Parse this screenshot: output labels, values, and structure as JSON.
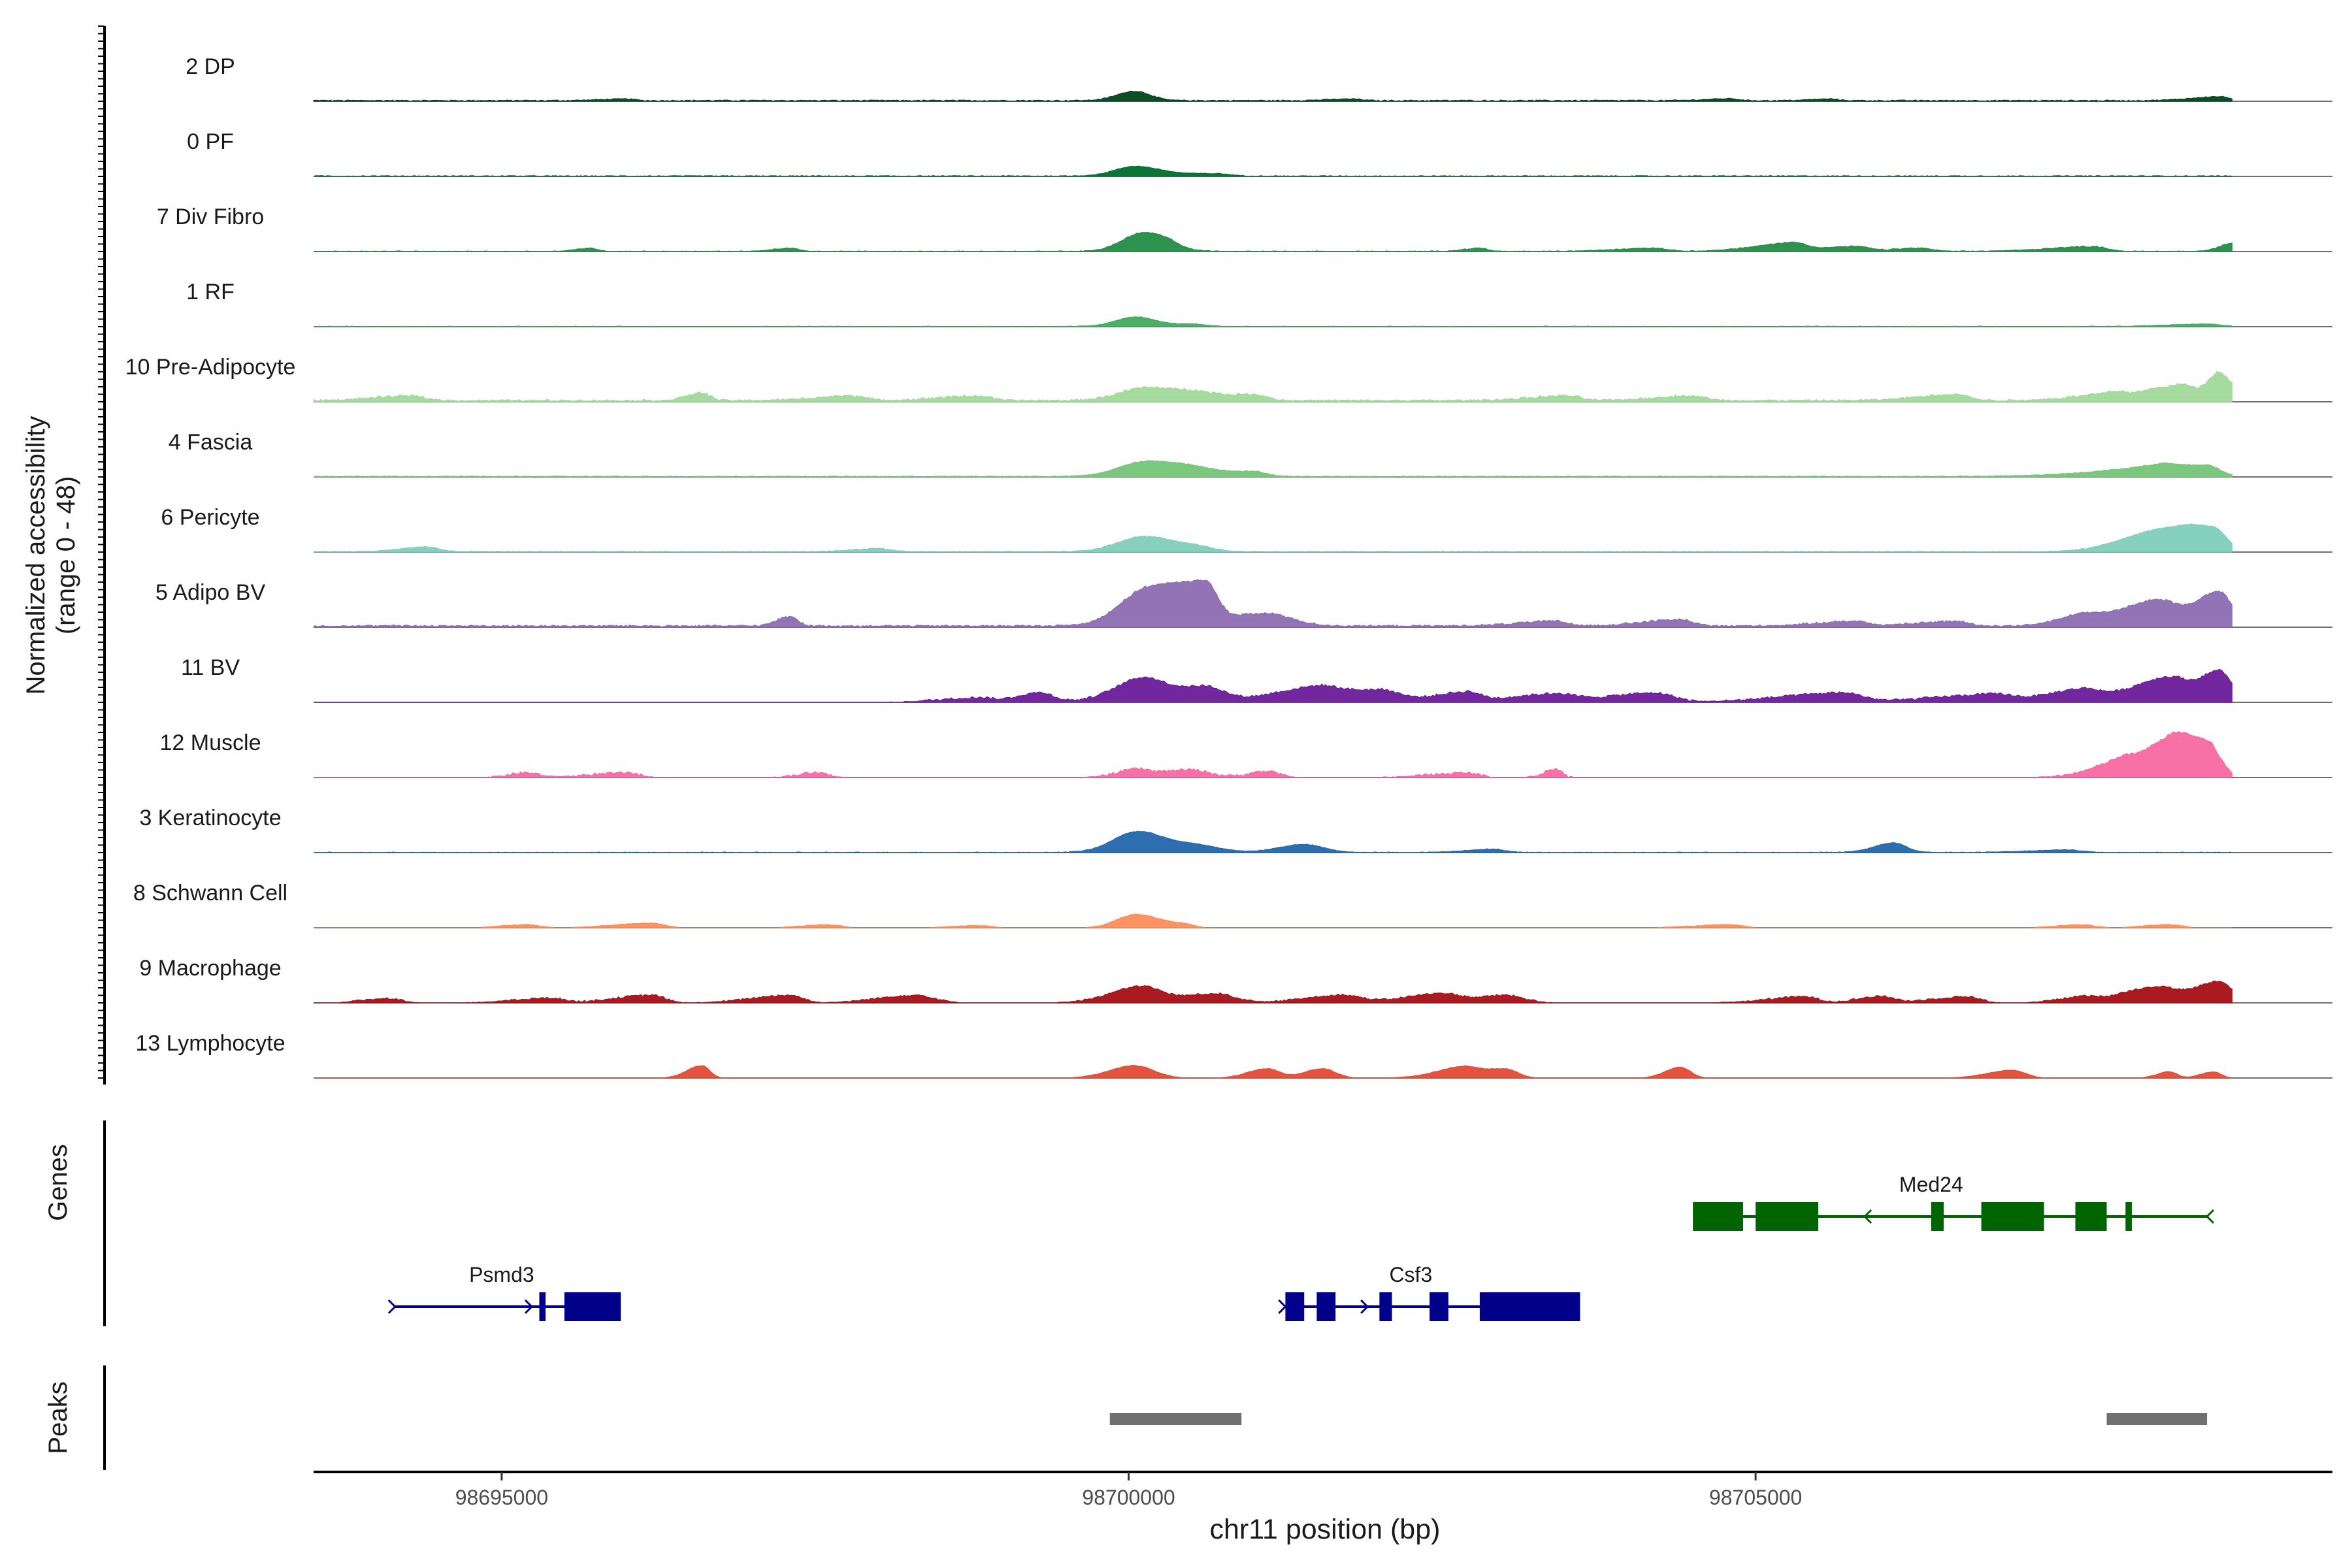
{
  "chart_data": {
    "type": "area",
    "title": "",
    "xlabel": "chr11 position (bp)",
    "xlim": [
      98693500,
      98709600
    ],
    "x_ticks": [
      98695000,
      98700000,
      98705000
    ],
    "x_tick_labels": [
      "98695000",
      "98700000",
      "98705000"
    ],
    "y_axis_label": "Normalized accessibility\n(range 0 - 48)",
    "ylim": [
      0,
      48
    ],
    "data_extent": [
      98693500,
      98708800
    ],
    "grid": false,
    "coverage_tracks": [
      {
        "name": "2 DP",
        "color": "#00441b",
        "peaks": [
          [
            98700050,
            6,
            140,
            120
          ],
          [
            98708700,
            2.5,
            220,
            80
          ],
          [
            98704800,
            1.2,
            180,
            60
          ],
          [
            98705600,
            1,
            150,
            60
          ],
          [
            98696000,
            1,
            200,
            60
          ],
          [
            98701800,
            1,
            200,
            60
          ]
        ],
        "base": 0.6,
        "noise": 0.25
      },
      {
        "name": "0 PF",
        "color": "#006d2c",
        "peaks": [
          [
            98700050,
            6,
            160,
            200
          ],
          [
            98700700,
            1.5,
            300,
            100
          ]
        ],
        "base": 0.4,
        "noise": 0.2
      },
      {
        "name": "7 Div Fibro",
        "color": "#238b45",
        "peaks": [
          [
            98700100,
            10,
            160,
            200
          ],
          [
            98700300,
            3,
            200,
            80
          ],
          [
            98705300,
            5,
            300,
            100
          ],
          [
            98705800,
            3,
            300,
            100
          ],
          [
            98707700,
            3,
            350,
            100
          ],
          [
            98708800,
            5,
            100,
            60
          ],
          [
            98695700,
            2,
            100,
            60
          ],
          [
            98697300,
            2,
            120,
            60
          ],
          [
            98702800,
            2,
            120,
            60
          ],
          [
            98704200,
            2,
            300,
            100
          ],
          [
            98706300,
            2,
            200,
            100
          ]
        ],
        "base": 0.3,
        "noise": 0.6
      },
      {
        "name": "1 RF",
        "color": "#41ab5d",
        "peaks": [
          [
            98700050,
            6,
            150,
            150
          ],
          [
            98700500,
            1.5,
            200,
            100
          ],
          [
            98708600,
            1.5,
            300,
            100
          ]
        ],
        "base": 0.3,
        "noise": 0.2
      },
      {
        "name": "10 Pre-Adipocyte",
        "color": "#a1d99b",
        "peaks": [
          [
            98700100,
            6,
            200,
            200
          ],
          [
            98700500,
            5,
            300,
            150
          ],
          [
            98701000,
            4,
            300,
            100
          ],
          [
            98696600,
            5,
            120,
            60
          ],
          [
            98707850,
            4,
            300,
            100
          ],
          [
            98708400,
            10,
            300,
            100
          ],
          [
            98708700,
            18,
            100,
            100
          ],
          [
            98694300,
            3,
            300,
            100
          ],
          [
            98697800,
            3,
            300,
            100
          ],
          [
            98698800,
            3,
            300,
            100
          ],
          [
            98703500,
            3,
            300,
            100
          ],
          [
            98704500,
            3,
            300,
            100
          ],
          [
            98706600,
            4,
            300,
            100
          ]
        ],
        "base": 1.0,
        "noise": 1.0
      },
      {
        "name": "4 Fascia",
        "color": "#74c476",
        "peaks": [
          [
            98700100,
            8,
            200,
            250
          ],
          [
            98700500,
            5,
            250,
            200
          ],
          [
            98701000,
            3,
            200,
            100
          ],
          [
            98708200,
            5,
            500,
            150
          ],
          [
            98708600,
            7,
            300,
            100
          ]
        ],
        "base": 0.5,
        "noise": 0.3
      },
      {
        "name": "6 Pericyte",
        "color": "#7fcdbb",
        "peaks": [
          [
            98700100,
            8,
            200,
            200
          ],
          [
            98700500,
            4,
            300,
            150
          ],
          [
            98694400,
            3,
            200,
            100
          ],
          [
            98698000,
            2,
            200,
            100
          ],
          [
            98708200,
            12,
            300,
            300
          ],
          [
            98708650,
            12,
            250,
            100
          ]
        ],
        "base": 0.4,
        "noise": 0.5
      },
      {
        "name": "5 Adipo BV",
        "color": "#8c6bb1",
        "peaks": [
          [
            98700100,
            14,
            200,
            200
          ],
          [
            98700600,
            26,
            350,
            100
          ],
          [
            98701100,
            8,
            350,
            200
          ],
          [
            98697300,
            6,
            100,
            60
          ],
          [
            98704400,
            4,
            300,
            100
          ],
          [
            98707600,
            6,
            200,
            150
          ],
          [
            98708200,
            16,
            300,
            150
          ],
          [
            98708700,
            22,
            200,
            100
          ],
          [
            98703400,
            3,
            300,
            100
          ],
          [
            98705800,
            3,
            300,
            100
          ],
          [
            98706600,
            3,
            300,
            100
          ]
        ],
        "base": 1.0,
        "noise": 0.8
      },
      {
        "name": "11 BV",
        "color": "#6a1b9a",
        "peaks": [
          [
            98700100,
            10,
            200,
            150
          ],
          [
            98700600,
            10,
            500,
            150
          ],
          [
            98701500,
            6,
            400,
            150
          ],
          [
            98702000,
            8,
            500,
            150
          ],
          [
            98702700,
            6,
            300,
            100
          ],
          [
            98703400,
            5,
            400,
            150
          ],
          [
            98704200,
            6,
            400,
            150
          ],
          [
            98705700,
            6,
            500,
            150
          ],
          [
            98706900,
            5,
            500,
            150
          ],
          [
            98707600,
            8,
            300,
            150
          ],
          [
            98708300,
            16,
            300,
            150
          ],
          [
            98708700,
            20,
            150,
            100
          ],
          [
            98699300,
            6,
            200,
            100
          ],
          [
            98698800,
            3,
            300,
            100
          ]
        ],
        "base": 0,
        "noise": 1.5
      },
      {
        "name": "12 Muscle",
        "color": "#f768a1",
        "peaks": [
          [
            98700050,
            4,
            150,
            100
          ],
          [
            98700500,
            5,
            300,
            150
          ],
          [
            98701100,
            4,
            150,
            100
          ],
          [
            98695200,
            3,
            150,
            100
          ],
          [
            98696000,
            3,
            300,
            100
          ],
          [
            98697500,
            3,
            150,
            100
          ],
          [
            98702700,
            3,
            300,
            100
          ],
          [
            98703400,
            5,
            100,
            60
          ],
          [
            98707900,
            6,
            250,
            100
          ],
          [
            98708300,
            14,
            300,
            150
          ],
          [
            98708600,
            22,
            300,
            100
          ]
        ],
        "base": 0,
        "noise": 1.6
      },
      {
        "name": "3 Keratinocyte",
        "color": "#2166ac",
        "peaks": [
          [
            98700050,
            11,
            180,
            200
          ],
          [
            98700500,
            5,
            350,
            200
          ],
          [
            98701400,
            5,
            200,
            150
          ],
          [
            98706100,
            6,
            150,
            100
          ],
          [
            98702900,
            2,
            200,
            100
          ],
          [
            98707500,
            1.5,
            300,
            100
          ]
        ],
        "base": 0.3,
        "noise": 0.3
      },
      {
        "name": "8 Schwann Cell",
        "color": "#fc8d59",
        "peaks": [
          [
            98700050,
            8,
            150,
            150
          ],
          [
            98700400,
            3,
            200,
            100
          ],
          [
            98695200,
            2,
            200,
            100
          ],
          [
            98696200,
            3,
            300,
            100
          ],
          [
            98697600,
            2,
            200,
            100
          ],
          [
            98698800,
            1.5,
            200,
            100
          ],
          [
            98704800,
            2,
            300,
            100
          ],
          [
            98707600,
            2,
            200,
            100
          ],
          [
            98708300,
            2,
            200,
            100
          ]
        ],
        "base": 0,
        "noise": 0.5
      },
      {
        "name": "9 Macrophage",
        "color": "#a50f15",
        "peaks": [
          [
            98700100,
            10,
            250,
            150
          ],
          [
            98700700,
            6,
            300,
            150
          ],
          [
            98697300,
            5,
            300,
            100
          ],
          [
            98698300,
            5,
            300,
            150
          ],
          [
            98701700,
            5,
            300,
            150
          ],
          [
            98702500,
            6,
            300,
            150
          ],
          [
            98703000,
            5,
            200,
            150
          ],
          [
            98694100,
            3,
            200,
            100
          ],
          [
            98695400,
            3,
            300,
            100
          ],
          [
            98696200,
            5,
            300,
            100
          ],
          [
            98705400,
            4,
            300,
            100
          ],
          [
            98706000,
            4,
            200,
            100
          ],
          [
            98706700,
            4,
            300,
            100
          ],
          [
            98707600,
            3,
            200,
            100
          ],
          [
            98708200,
            10,
            300,
            150
          ],
          [
            98708700,
            14,
            200,
            100
          ]
        ],
        "base": 0,
        "noise": 1.2
      },
      {
        "name": "13 Lymphocyte",
        "color": "#e34a33",
        "peaks": [
          [
            98696600,
            8,
            120,
            60
          ],
          [
            98700050,
            8,
            200,
            150
          ],
          [
            98701100,
            6,
            150,
            100
          ],
          [
            98701550,
            6,
            150,
            100
          ],
          [
            98702650,
            4,
            200,
            100
          ],
          [
            98703000,
            6,
            350,
            100
          ],
          [
            98704400,
            7,
            120,
            80
          ],
          [
            98707050,
            5,
            200,
            100
          ],
          [
            98708300,
            4,
            100,
            60
          ],
          [
            98708650,
            4,
            100,
            60
          ]
        ],
        "base": 0,
        "noise": 0.4
      }
    ],
    "genes": [
      {
        "name": "Psmd3",
        "strand": "+",
        "color": "#00008b",
        "start": 98694150,
        "end": 98695950,
        "row": 2,
        "exons": [
          [
            98695300,
            98695350
          ],
          [
            98695500,
            98695950
          ]
        ]
      },
      {
        "name": "Csf3",
        "strand": "+",
        "color": "#00008b",
        "start": 98701250,
        "end": 98703600,
        "row": 2,
        "exons": [
          [
            98701250,
            98701400
          ],
          [
            98701500,
            98701650
          ],
          [
            98702000,
            98702100
          ],
          [
            98702400,
            98702550
          ],
          [
            98702800,
            98703600
          ]
        ]
      },
      {
        "name": "Med24",
        "strand": "-",
        "color": "#006400",
        "start": 98704500,
        "end": 98708600,
        "row": 1,
        "exons": [
          [
            98704500,
            98704900
          ],
          [
            98705000,
            98705500
          ],
          [
            98706400,
            98706500
          ],
          [
            98706800,
            98707300
          ],
          [
            98707550,
            98707800
          ],
          [
            98707950,
            98708000
          ]
        ]
      }
    ],
    "gene_track_label": "Genes",
    "peak_track_label": "Peaks",
    "peaks": [
      [
        98699850,
        98700900
      ],
      [
        98707800,
        98708600
      ]
    ],
    "peak_color": "#707070"
  }
}
